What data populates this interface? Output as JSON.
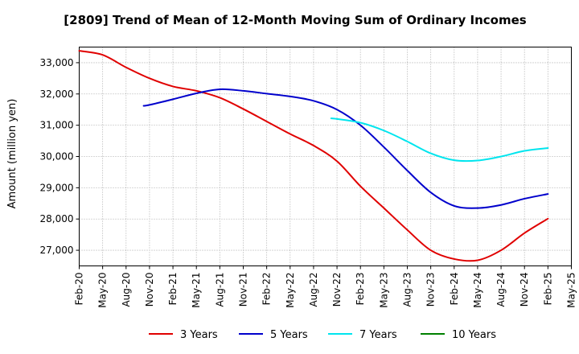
{
  "chart_data": {
    "type": "line",
    "title": "[2809]  Trend of Mean of 12-Month Moving Sum of Ordinary Incomes",
    "xlabel": "",
    "ylabel": "Amount (million yen)",
    "ylim": [
      26500,
      33500
    ],
    "y_ticks": [
      27000,
      28000,
      29000,
      30000,
      31000,
      32000,
      33000
    ],
    "y_tick_labels": [
      "27,000",
      "28,000",
      "29,000",
      "30,000",
      "31,000",
      "32,000",
      "33,000"
    ],
    "x_ticks": [
      "Feb-20",
      "May-20",
      "Aug-20",
      "Nov-20",
      "Feb-21",
      "May-21",
      "Aug-21",
      "Nov-21",
      "Feb-22",
      "May-22",
      "Aug-22",
      "Nov-22",
      "Feb-23",
      "May-23",
      "Aug-23",
      "Nov-23",
      "Feb-24",
      "May-24",
      "Aug-24",
      "Nov-24",
      "Feb-25",
      "May-25"
    ],
    "grid": true,
    "legend_position": "bottom",
    "series": [
      {
        "name": "3 Years",
        "color": "#e00000",
        "x": [
          0,
          1,
          2,
          3,
          4,
          5,
          6,
          7,
          8,
          9,
          10,
          11,
          12,
          13,
          14,
          15,
          16,
          17,
          18,
          19,
          20
        ],
        "values": [
          33380,
          33250,
          32850,
          32500,
          32240,
          32100,
          31880,
          31520,
          31120,
          30720,
          30350,
          29850,
          29050,
          28350,
          27650,
          27000,
          26720,
          26680,
          27000,
          27550,
          28010
        ]
      },
      {
        "name": "5 Years",
        "color": "#0000cc",
        "x": [
          2.75,
          3,
          4,
          5,
          6,
          7,
          8,
          9,
          10,
          11,
          12,
          13,
          14,
          15,
          16,
          17,
          18,
          19,
          20
        ],
        "values": [
          31620,
          31650,
          31830,
          32020,
          32150,
          32100,
          32010,
          31920,
          31780,
          31500,
          31000,
          30300,
          29550,
          28850,
          28420,
          28350,
          28450,
          28650,
          28800
        ]
      },
      {
        "name": "7 Years",
        "color": "#00e5ee",
        "x": [
          10.75,
          11,
          12,
          13,
          14,
          15,
          16,
          17,
          18,
          19,
          20
        ],
        "values": [
          31220,
          31200,
          31080,
          30830,
          30480,
          30100,
          29880,
          29870,
          30000,
          30180,
          30270
        ]
      },
      {
        "name": "10 Years",
        "color": "#008000",
        "x": [],
        "values": []
      }
    ]
  }
}
